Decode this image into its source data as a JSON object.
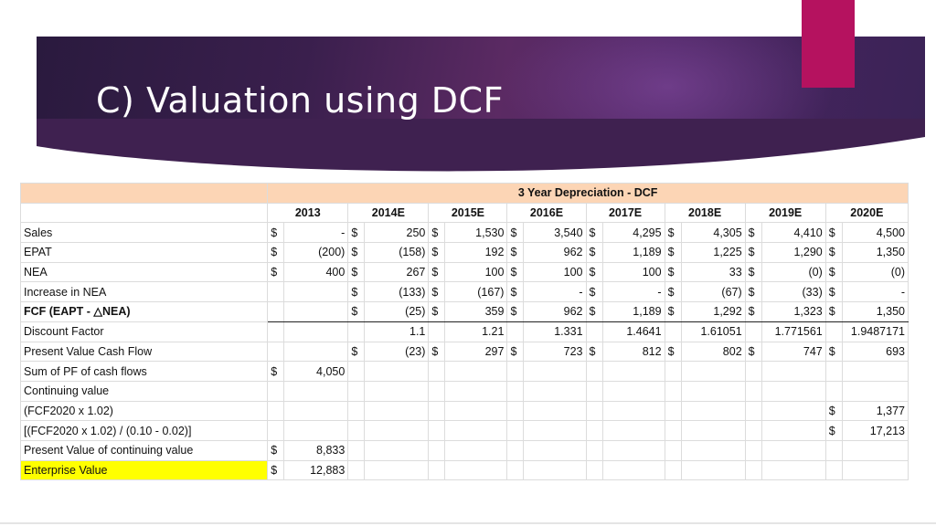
{
  "slide": {
    "title": "C) Valuation using DCF"
  },
  "table": {
    "caption": "3 Year Depreciation - DCF",
    "years": [
      "2013",
      "2014E",
      "2015E",
      "2016E",
      "2017E",
      "2018E",
      "2019E",
      "2020E"
    ],
    "rows": [
      {
        "label": "Sales",
        "cells": [
          [
            "$",
            "-"
          ],
          [
            "$",
            "250"
          ],
          [
            "$",
            "1,530"
          ],
          [
            "$",
            "3,540"
          ],
          [
            "$",
            "4,295"
          ],
          [
            "$",
            "4,305"
          ],
          [
            "$",
            "4,410"
          ],
          [
            "$",
            "4,500"
          ]
        ]
      },
      {
        "label": "EPAT",
        "cells": [
          [
            "$",
            "(200)"
          ],
          [
            "$",
            "(158)"
          ],
          [
            "$",
            "192"
          ],
          [
            "$",
            "962"
          ],
          [
            "$",
            "1,189"
          ],
          [
            "$",
            "1,225"
          ],
          [
            "$",
            "1,290"
          ],
          [
            "$",
            "1,350"
          ]
        ]
      },
      {
        "label": "NEA",
        "cells": [
          [
            "$",
            "400"
          ],
          [
            "$",
            "267"
          ],
          [
            "$",
            "100"
          ],
          [
            "$",
            "100"
          ],
          [
            "$",
            "100"
          ],
          [
            "$",
            "33"
          ],
          [
            "$",
            "(0)"
          ],
          [
            "$",
            "(0)"
          ]
        ]
      },
      {
        "label": "Increase in NEA",
        "cells": [
          [
            "",
            ""
          ],
          [
            "$",
            "(133)"
          ],
          [
            "$",
            "(167)"
          ],
          [
            "$",
            "-"
          ],
          [
            "$",
            "-"
          ],
          [
            "$",
            "(67)"
          ],
          [
            "$",
            "(33)"
          ],
          [
            "$",
            "-"
          ]
        ]
      },
      {
        "label": "FCF (EAPT - △NEA)",
        "bold": true,
        "cells": [
          [
            "",
            ""
          ],
          [
            "$",
            "(25)"
          ],
          [
            "$",
            "359"
          ],
          [
            "$",
            "962"
          ],
          [
            "$",
            "1,189"
          ],
          [
            "$",
            "1,292"
          ],
          [
            "$",
            "1,323"
          ],
          [
            "$",
            "1,350"
          ]
        ]
      },
      {
        "label": "Discount Factor",
        "cells": [
          [
            "",
            ""
          ],
          [
            "",
            "1.1"
          ],
          [
            "",
            "1.21"
          ],
          [
            "",
            "1.331"
          ],
          [
            "",
            "1.4641"
          ],
          [
            "",
            "1.61051"
          ],
          [
            "",
            "1.771561"
          ],
          [
            "",
            "1.9487171"
          ]
        ]
      },
      {
        "label": "Present Value Cash Flow",
        "cells": [
          [
            "",
            ""
          ],
          [
            "$",
            "(23)"
          ],
          [
            "$",
            "297"
          ],
          [
            "$",
            "723"
          ],
          [
            "$",
            "812"
          ],
          [
            "$",
            "802"
          ],
          [
            "$",
            "747"
          ],
          [
            "$",
            "693"
          ]
        ]
      },
      {
        "label": "Sum of PF of cash flows",
        "cells": [
          [
            "$",
            "4,050"
          ],
          [
            "",
            ""
          ],
          [
            "",
            ""
          ],
          [
            "",
            ""
          ],
          [
            "",
            ""
          ],
          [
            "",
            ""
          ],
          [
            "",
            ""
          ],
          [
            "",
            ""
          ]
        ]
      },
      {
        "label": "Continuing value",
        "cells": [
          [
            "",
            ""
          ],
          [
            "",
            ""
          ],
          [
            "",
            ""
          ],
          [
            "",
            ""
          ],
          [
            "",
            ""
          ],
          [
            "",
            ""
          ],
          [
            "",
            ""
          ],
          [
            "",
            ""
          ]
        ]
      },
      {
        "label": "(FCF2020 x 1.02)",
        "cells": [
          [
            "",
            ""
          ],
          [
            "",
            ""
          ],
          [
            "",
            ""
          ],
          [
            "",
            ""
          ],
          [
            "",
            ""
          ],
          [
            "",
            ""
          ],
          [
            "",
            ""
          ],
          [
            "$",
            "1,377"
          ]
        ]
      },
      {
        "label": "[(FCF2020 x 1.02) / (0.10 - 0.02)]",
        "cells": [
          [
            "",
            ""
          ],
          [
            "",
            ""
          ],
          [
            "",
            ""
          ],
          [
            "",
            ""
          ],
          [
            "",
            ""
          ],
          [
            "",
            ""
          ],
          [
            "",
            ""
          ],
          [
            "$",
            "17,213"
          ]
        ]
      },
      {
        "label": "Present Value of continuing value",
        "cells": [
          [
            "$",
            "8,833"
          ],
          [
            "",
            ""
          ],
          [
            "",
            ""
          ],
          [
            "",
            ""
          ],
          [
            "",
            ""
          ],
          [
            "",
            ""
          ],
          [
            "",
            ""
          ],
          [
            "",
            ""
          ]
        ]
      },
      {
        "label": "Enterprise Value",
        "highlight": true,
        "cells": [
          [
            "$",
            "12,883"
          ],
          [
            "",
            ""
          ],
          [
            "",
            ""
          ],
          [
            "",
            ""
          ],
          [
            "",
            ""
          ],
          [
            "",
            ""
          ],
          [
            "",
            ""
          ],
          [
            "",
            ""
          ]
        ]
      }
    ]
  }
}
